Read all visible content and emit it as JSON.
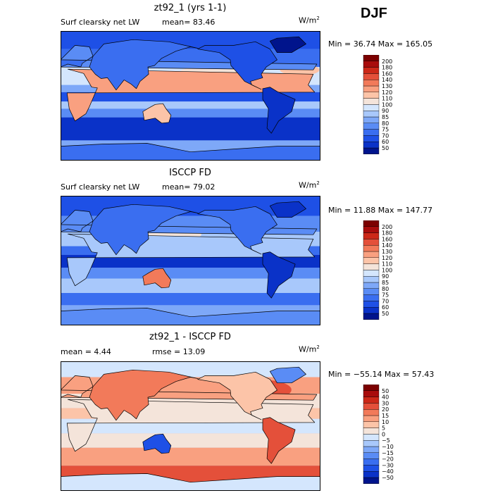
{
  "season": "DJF",
  "chart_data": [
    {
      "type": "heatmap",
      "title": "zt92_1 (yrs 1-1)",
      "left_label": "Surf clearsky net LW",
      "mid_label": "mean=  83.46",
      "units": "W/m",
      "units_sup": "2",
      "stats": "Min =  36.74 Max = 165.05",
      "min": 36.74,
      "max": 165.05,
      "mean": 83.46,
      "levels": [
        "50",
        "60",
        "70",
        "75",
        "80",
        "85",
        "90",
        "100",
        "110",
        "120",
        "130",
        "140",
        "160",
        "180",
        "200"
      ],
      "colors": [
        "#00148c",
        "#0a32c8",
        "#1e50e6",
        "#3a6ef0",
        "#5a8cf5",
        "#7ea8f8",
        "#a8c8fb",
        "#d4e6fd",
        "#f4e4da",
        "#fcc4a8",
        "#f9a080",
        "#f27a5a",
        "#e4503a",
        "#cc2818",
        "#a80c0c",
        "#7c0000"
      ]
    },
    {
      "type": "heatmap",
      "title": "ISCCP FD",
      "left_label": "Surf clearsky net LW",
      "mid_label": "mean=  79.02",
      "units": "W/m",
      "units_sup": "2",
      "stats": "Min =  11.88 Max = 147.77",
      "min": 11.88,
      "max": 147.77,
      "mean": 79.02,
      "levels": [
        "50",
        "60",
        "70",
        "75",
        "80",
        "85",
        "90",
        "100",
        "110",
        "120",
        "130",
        "140",
        "160",
        "180",
        "200"
      ],
      "colors": [
        "#00148c",
        "#0a32c8",
        "#1e50e6",
        "#3a6ef0",
        "#5a8cf5",
        "#7ea8f8",
        "#a8c8fb",
        "#d4e6fd",
        "#f4e4da",
        "#fcc4a8",
        "#f9a080",
        "#f27a5a",
        "#e4503a",
        "#cc2818",
        "#a80c0c",
        "#7c0000"
      ]
    },
    {
      "type": "heatmap",
      "title": "zt92_1 - ISCCP FD",
      "left_label": "mean =    4.44",
      "mid_label": "rmse =   13.09",
      "units": "W/m",
      "units_sup": "2",
      "stats": "Min = −55.14 Max =  57.43",
      "min": -55.14,
      "max": 57.43,
      "mean": 4.44,
      "rmse": 13.09,
      "levels": [
        "−50",
        "−40",
        "−30",
        "−20",
        "−15",
        "−10",
        "−5",
        "0",
        "5",
        "10",
        "15",
        "20",
        "30",
        "40",
        "50"
      ],
      "colors": [
        "#00148c",
        "#0a32c8",
        "#1e50e6",
        "#3a6ef0",
        "#5a8cf5",
        "#7ea8f8",
        "#a8c8fb",
        "#d4e6fd",
        "#f4e4da",
        "#fcc4a8",
        "#f9a080",
        "#f27a5a",
        "#e4503a",
        "#cc2818",
        "#a80c0c",
        "#7c0000"
      ]
    }
  ]
}
